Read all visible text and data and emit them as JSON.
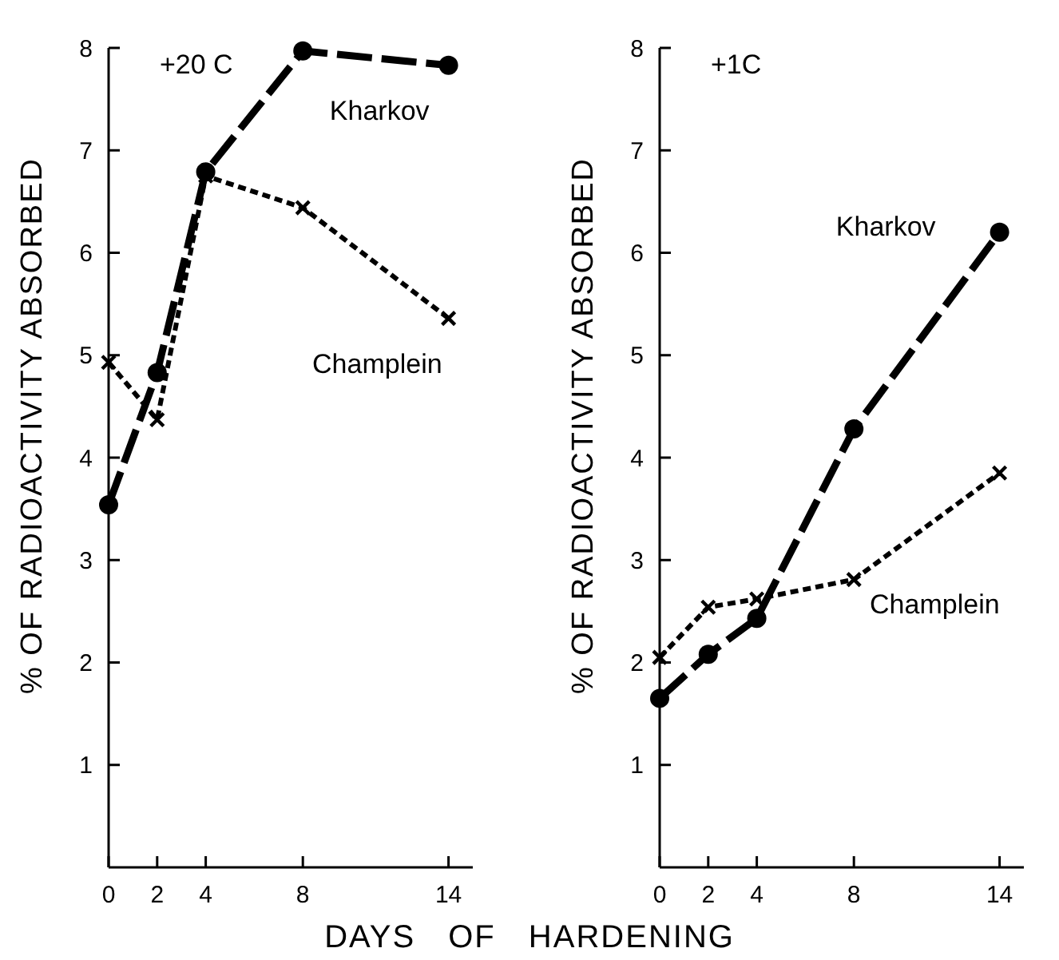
{
  "chart_data": [
    {
      "type": "line",
      "ylabel": "% OF RADIOACTIVITY ABSORBED",
      "xlabel": "DAYS OF HARDENING",
      "annotations": [
        "+20 C"
      ],
      "xlim": [
        0,
        15
      ],
      "ylim": [
        0,
        8
      ],
      "xticks": [
        0,
        2,
        4,
        8,
        14
      ],
      "yticks": [
        1,
        2,
        3,
        4,
        5,
        6,
        7,
        8
      ],
      "grid": false,
      "legend": false,
      "series": [
        {
          "name": "Kharkov",
          "color": "#000000",
          "marker": "circle",
          "line_style": "dashed",
          "x": [
            0,
            2,
            4,
            8,
            14
          ],
          "values": [
            3.54,
            4.83,
            6.79,
            7.97,
            7.83
          ]
        },
        {
          "name": "Champlein",
          "color": "#000000",
          "marker": "cross",
          "line_style": "dotted",
          "x": [
            0,
            2,
            4,
            8,
            14
          ],
          "values": [
            4.93,
            4.37,
            6.75,
            6.44,
            5.36
          ]
        }
      ]
    },
    {
      "type": "line",
      "ylabel": "% OF RADIOACTIVITY ABSORBED",
      "annotations": [
        "+1C"
      ],
      "xlim": [
        0,
        15
      ],
      "ylim": [
        0,
        8
      ],
      "xticks": [
        0,
        2,
        4,
        8,
        14
      ],
      "yticks": [
        1,
        2,
        3,
        4,
        5,
        6,
        7,
        8
      ],
      "grid": false,
      "legend": false,
      "series": [
        {
          "name": "Kharkov",
          "color": "#000000",
          "marker": "circle",
          "line_style": "dashed",
          "x": [
            0,
            2,
            4,
            8,
            14
          ],
          "values": [
            1.65,
            2.08,
            2.43,
            4.28,
            6.2
          ]
        },
        {
          "name": "Champlein",
          "color": "#000000",
          "marker": "cross",
          "line_style": "dotted",
          "x": [
            0,
            2,
            4,
            8,
            14
          ],
          "values": [
            2.05,
            2.54,
            2.62,
            2.81,
            3.85
          ]
        }
      ]
    }
  ]
}
